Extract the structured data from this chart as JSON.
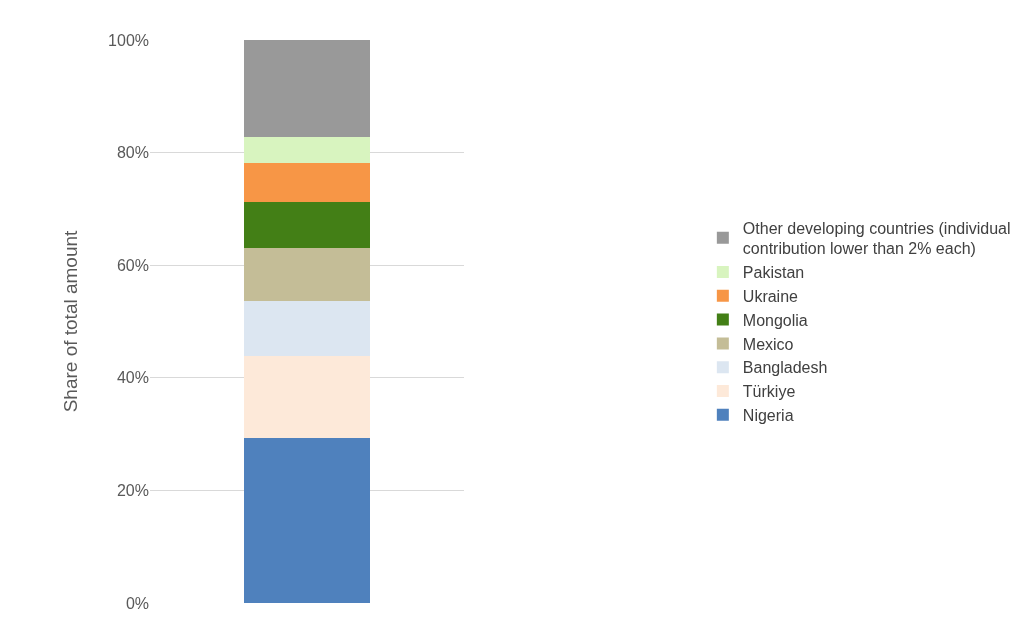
{
  "chart_data": {
    "type": "bar",
    "stacked": true,
    "ylabel": "Share of total amount",
    "categories": [
      null
    ],
    "series": [
      {
        "name": "Nigeria",
        "color": "#4f81bd",
        "values": [
          29.3
        ]
      },
      {
        "name": "Türkiye",
        "color": "#fde9d9",
        "values": [
          14.6
        ]
      },
      {
        "name": "Bangladesh",
        "color": "#dce6f1",
        "values": [
          9.7
        ]
      },
      {
        "name": "Mexico",
        "color": "#c4bd97",
        "values": [
          9.4
        ]
      },
      {
        "name": "Mongolia",
        "color": "#437f16",
        "values": [
          8.2
        ]
      },
      {
        "name": "Ukraine",
        "color": "#f79646",
        "values": [
          7.0
        ]
      },
      {
        "name": "Pakistan",
        "color": "#d8f4bf",
        "values": [
          4.6
        ]
      },
      {
        "name": "Other developing countries (individual contribution lower than 2% each)",
        "color": "#999999",
        "values": [
          17.2
        ]
      }
    ],
    "ylim": [
      0,
      100
    ],
    "yticks": [
      {
        "value": 0,
        "label": "0%"
      },
      {
        "value": 20,
        "label": "20%"
      },
      {
        "value": 40,
        "label": "40%"
      },
      {
        "value": 60,
        "label": "60%"
      },
      {
        "value": 80,
        "label": "80%"
      },
      {
        "value": 100,
        "label": "100%"
      }
    ],
    "grid": "y",
    "legend": "right"
  }
}
